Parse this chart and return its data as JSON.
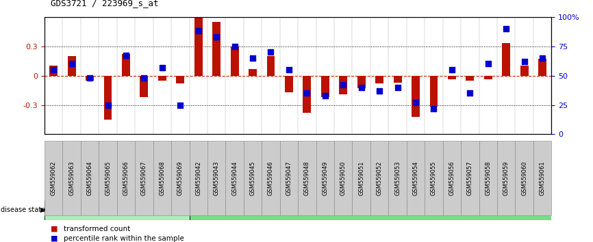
{
  "title": "GDS3721 / 223969_s_at",
  "samples": [
    "GSM559062",
    "GSM559063",
    "GSM559064",
    "GSM559065",
    "GSM559066",
    "GSM559067",
    "GSM559068",
    "GSM559069",
    "GSM559042",
    "GSM559043",
    "GSM559044",
    "GSM559045",
    "GSM559046",
    "GSM559047",
    "GSM559048",
    "GSM559049",
    "GSM559050",
    "GSM559051",
    "GSM559052",
    "GSM559053",
    "GSM559054",
    "GSM559055",
    "GSM559056",
    "GSM559057",
    "GSM559058",
    "GSM559059",
    "GSM559060",
    "GSM559061"
  ],
  "red_values": [
    0.1,
    0.2,
    -0.05,
    -0.45,
    0.22,
    -0.22,
    -0.05,
    -0.08,
    0.62,
    0.55,
    0.3,
    0.07,
    0.2,
    -0.17,
    -0.38,
    -0.22,
    -0.19,
    -0.13,
    -0.08,
    -0.07,
    -0.42,
    -0.32,
    -0.04,
    -0.05,
    -0.04,
    0.33,
    0.1,
    0.17
  ],
  "blue_values": [
    55,
    60,
    48,
    25,
    67,
    48,
    57,
    25,
    88,
    83,
    75,
    65,
    70,
    55,
    35,
    33,
    42,
    40,
    37,
    40,
    27,
    22,
    55,
    35,
    60,
    90,
    62,
    65
  ],
  "pCR_count": 8,
  "pPR_count": 20,
  "ylim": [
    -0.6,
    0.6
  ],
  "y_ticks_red": [
    -0.3,
    0.0,
    0.3
  ],
  "y_ticks_blue": [
    0,
    25,
    50,
    75,
    100
  ],
  "bar_color": "#bb1100",
  "dot_color": "#0000cc",
  "pCR_color": "#aaeebb",
  "pPR_color": "#77dd88",
  "bg_color": "#ffffff",
  "zero_line_color": "#cc2200",
  "grid_color": "#000000",
  "tick_bg_color": "#cccccc",
  "label_transformed": "transformed count",
  "label_percentile": "percentile rank within the sample",
  "bar_width": 0.45,
  "dot_size": 28
}
